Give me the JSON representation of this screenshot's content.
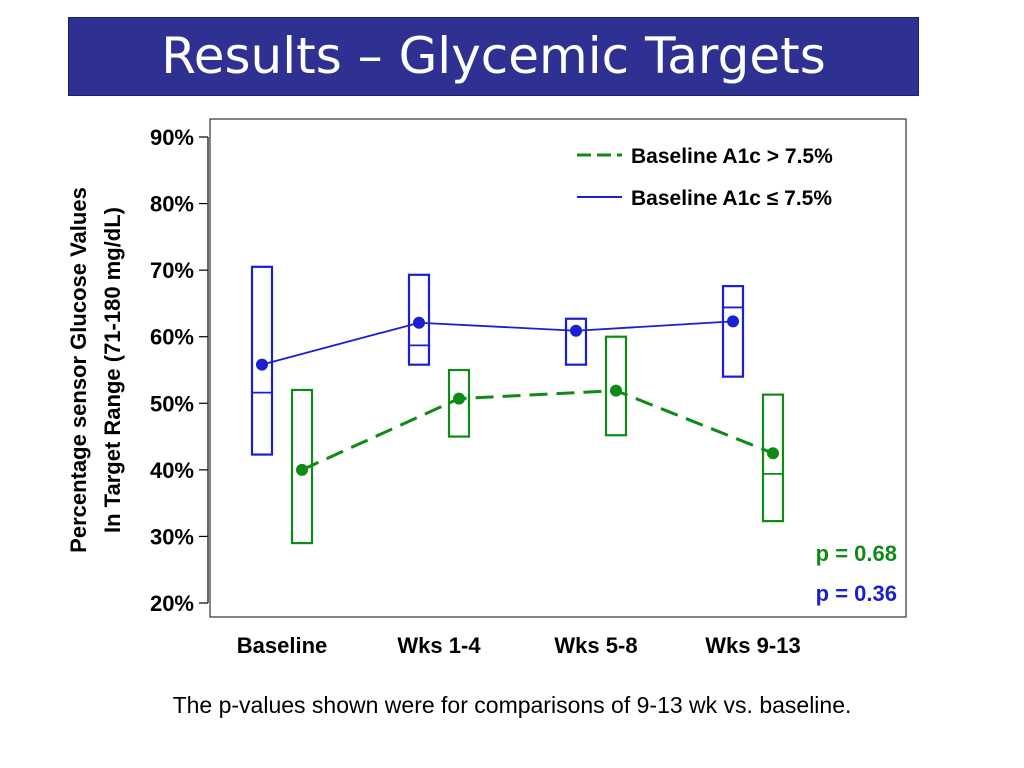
{
  "slide": {
    "title": "Results – Glycemic Targets",
    "footnote": "The p-values shown were for comparisons of 9-13 wk vs. baseline."
  },
  "chart_data": {
    "type": "line",
    "ylabel_lines": [
      "Percentage sensor Glucose Values",
      "In Target Range (71-180 mg/dL)"
    ],
    "ylim": [
      20,
      90
    ],
    "y_ticks": [
      90,
      80,
      70,
      60,
      50,
      40,
      30,
      20
    ],
    "y_tick_labels": [
      "90%",
      "80%",
      "70%",
      "60%",
      "50%",
      "40%",
      "30%",
      "20%"
    ],
    "categories": [
      "Baseline",
      "Wks 1-4",
      "Wks 5-8",
      "Wks 9-13"
    ],
    "legend_position": "top-right",
    "grid": false,
    "series": [
      {
        "name": "Baseline A1c > 7.5%",
        "color": "#0f8a14",
        "line_style": "dashed",
        "values": [
          40,
          50.7,
          51.9,
          42.5
        ],
        "box_low": [
          29,
          45,
          45.2,
          32.3
        ],
        "box_median": [
          null,
          null,
          null,
          39.4
        ],
        "box_high": [
          52,
          55,
          60,
          51.3
        ],
        "p_value_label": "p = 0.68"
      },
      {
        "name": "Baseline A1c ≤ 7.5%",
        "color": "#1a1fd0",
        "line_style": "solid",
        "values": [
          55.8,
          62.1,
          60.9,
          62.3
        ],
        "box_low": [
          42.3,
          55.8,
          55.8,
          54
        ],
        "box_median": [
          51.6,
          58.7,
          null,
          64.4
        ],
        "box_high": [
          70.5,
          69.3,
          62.7,
          67.6
        ],
        "p_value_label": "p = 0.36"
      }
    ]
  }
}
